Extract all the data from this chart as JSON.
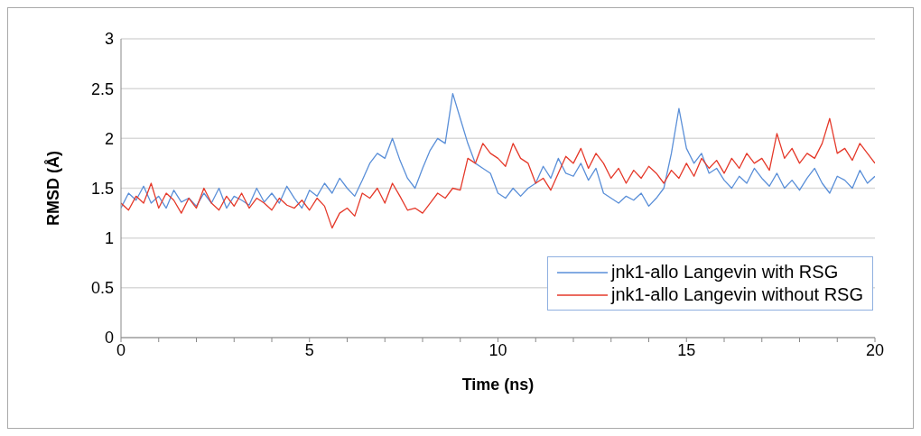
{
  "chart_data": {
    "type": "line",
    "xlabel": "Time (ns)",
    "ylabel": "RMSD (Å)",
    "x": [
      0,
      0.2,
      0.4,
      0.6,
      0.8,
      1,
      1.2,
      1.4,
      1.6,
      1.8,
      2,
      2.2,
      2.4,
      2.6,
      2.8,
      3,
      3.2,
      3.4,
      3.6,
      3.8,
      4,
      4.2,
      4.4,
      4.6,
      4.8,
      5,
      5.2,
      5.4,
      5.6,
      5.8,
      6,
      6.2,
      6.4,
      6.6,
      6.8,
      7,
      7.2,
      7.4,
      7.6,
      7.8,
      8,
      8.2,
      8.4,
      8.6,
      8.8,
      9,
      9.2,
      9.4,
      9.6,
      9.8,
      10,
      10.2,
      10.4,
      10.6,
      10.8,
      11,
      11.2,
      11.4,
      11.6,
      11.8,
      12,
      12.2,
      12.4,
      12.6,
      12.8,
      13,
      13.2,
      13.4,
      13.6,
      13.8,
      14,
      14.2,
      14.4,
      14.6,
      14.8,
      15,
      15.2,
      15.4,
      15.6,
      15.8,
      16,
      16.2,
      16.4,
      16.6,
      16.8,
      17,
      17.2,
      17.4,
      17.6,
      17.8,
      18,
      18.2,
      18.4,
      18.6,
      18.8,
      19,
      19.2,
      19.4,
      19.6,
      19.8,
      20
    ],
    "series": [
      {
        "name": "jnk1-allo Langevin with RSG",
        "color": "#5a8fd8",
        "values": [
          1.3,
          1.45,
          1.38,
          1.52,
          1.35,
          1.42,
          1.3,
          1.48,
          1.36,
          1.4,
          1.32,
          1.45,
          1.35,
          1.5,
          1.3,
          1.42,
          1.38,
          1.33,
          1.5,
          1.36,
          1.45,
          1.35,
          1.52,
          1.4,
          1.3,
          1.48,
          1.42,
          1.55,
          1.45,
          1.6,
          1.5,
          1.42,
          1.58,
          1.75,
          1.85,
          1.8,
          2.0,
          1.78,
          1.6,
          1.5,
          1.7,
          1.88,
          2.0,
          1.95,
          2.45,
          2.2,
          1.95,
          1.75,
          1.7,
          1.65,
          1.45,
          1.4,
          1.5,
          1.42,
          1.5,
          1.55,
          1.72,
          1.6,
          1.8,
          1.65,
          1.62,
          1.75,
          1.58,
          1.7,
          1.45,
          1.4,
          1.35,
          1.42,
          1.38,
          1.45,
          1.32,
          1.4,
          1.5,
          1.85,
          2.3,
          1.9,
          1.75,
          1.85,
          1.65,
          1.7,
          1.58,
          1.5,
          1.62,
          1.55,
          1.7,
          1.6,
          1.52,
          1.65,
          1.5,
          1.58,
          1.48,
          1.6,
          1.7,
          1.55,
          1.45,
          1.62,
          1.58,
          1.5,
          1.68,
          1.55,
          1.62
        ]
      },
      {
        "name": "jnk1-allo Langevin without RSG",
        "color": "#e5392a",
        "values": [
          1.35,
          1.28,
          1.42,
          1.35,
          1.55,
          1.3,
          1.45,
          1.38,
          1.25,
          1.4,
          1.3,
          1.5,
          1.35,
          1.28,
          1.42,
          1.32,
          1.45,
          1.3,
          1.4,
          1.35,
          1.28,
          1.4,
          1.33,
          1.3,
          1.38,
          1.28,
          1.4,
          1.32,
          1.1,
          1.25,
          1.3,
          1.22,
          1.45,
          1.4,
          1.5,
          1.35,
          1.55,
          1.42,
          1.28,
          1.3,
          1.25,
          1.35,
          1.45,
          1.4,
          1.5,
          1.48,
          1.8,
          1.75,
          1.95,
          1.85,
          1.8,
          1.72,
          1.95,
          1.8,
          1.75,
          1.55,
          1.6,
          1.48,
          1.65,
          1.82,
          1.75,
          1.9,
          1.7,
          1.85,
          1.75,
          1.6,
          1.7,
          1.55,
          1.68,
          1.6,
          1.72,
          1.65,
          1.55,
          1.68,
          1.6,
          1.75,
          1.62,
          1.8,
          1.7,
          1.78,
          1.65,
          1.8,
          1.7,
          1.85,
          1.75,
          1.8,
          1.68,
          2.05,
          1.8,
          1.9,
          1.75,
          1.85,
          1.8,
          1.95,
          2.2,
          1.85,
          1.9,
          1.78,
          1.95,
          1.85,
          1.75
        ]
      }
    ],
    "xlim": [
      0,
      20
    ],
    "xticks": [
      0,
      {
        "value": 1,
        "label": null
      },
      {
        "value": 2,
        "label": null
      },
      {
        "value": 3,
        "label": null
      },
      {
        "value": 4,
        "label": null
      },
      5,
      {
        "value": 6,
        "label": null
      },
      {
        "value": 7,
        "label": null
      },
      {
        "value": 8,
        "label": null
      },
      {
        "value": 9,
        "label": null
      },
      10,
      {
        "value": 11,
        "label": null
      },
      {
        "value": 12,
        "label": null
      },
      {
        "value": 13,
        "label": null
      },
      {
        "value": 14,
        "label": null
      },
      15,
      {
        "value": 16,
        "label": null
      },
      {
        "value": 17,
        "label": null
      },
      {
        "value": 18,
        "label": null
      },
      {
        "value": 19,
        "label": null
      },
      20
    ],
    "ylim": [
      0,
      3
    ],
    "yticks": [
      0,
      0.5,
      1,
      1.5,
      2,
      2.5,
      3
    ],
    "grid": "y",
    "legend": "bottom right",
    "marker": "none",
    "line_style": "solid"
  }
}
